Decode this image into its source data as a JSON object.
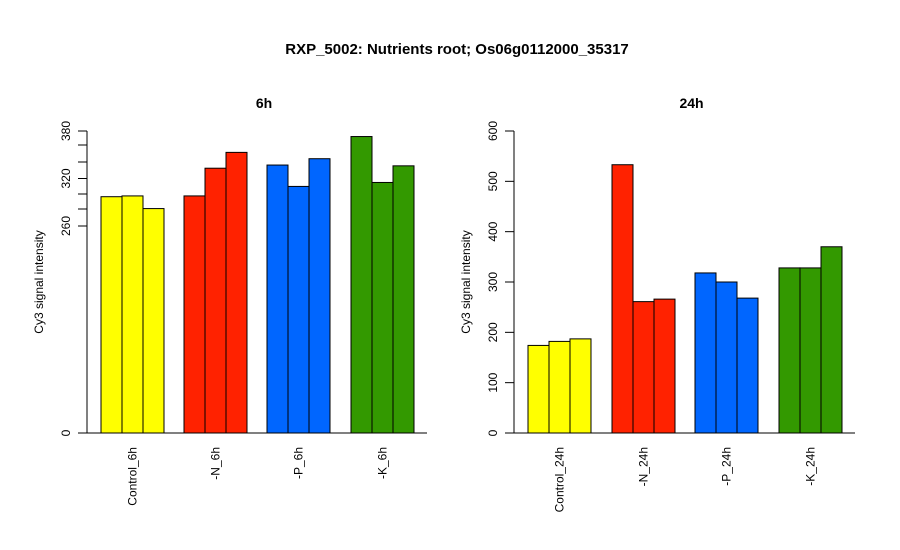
{
  "title": "RXP_5002: Nutrients root; Os06g0112000_35317",
  "colors": {
    "control": "#ffff00",
    "N": "#ff2200",
    "P": "#0066ff",
    "K": "#339900"
  },
  "chart_data": [
    {
      "type": "bar",
      "title": "6h",
      "ylabel": "Cy3 signal intensity",
      "ylim": [
        0,
        380
      ],
      "y_ticks": [
        0,
        260,
        320,
        380
      ],
      "y_scale": "piecewise: ticks 0 and 260 are spaced with a compressed lower range",
      "groups": [
        {
          "label": "Control_6h",
          "color": "#ffff00",
          "values": [
            297,
            298,
            282
          ]
        },
        {
          "label": "-N_6h",
          "color": "#ff2200",
          "values": [
            298,
            333,
            353
          ]
        },
        {
          "label": "-P_6h",
          "color": "#0066ff",
          "values": [
            337,
            310,
            345
          ]
        },
        {
          "label": "-K_6h",
          "color": "#339900",
          "values": [
            373,
            315,
            336
          ]
        }
      ]
    },
    {
      "type": "bar",
      "title": "24h",
      "ylabel": "Cy3 signal intensity",
      "ylim": [
        0,
        600
      ],
      "y_ticks": [
        0,
        100,
        200,
        300,
        400,
        500,
        600
      ],
      "groups": [
        {
          "label": "Control_24h",
          "color": "#ffff00",
          "values": [
            174,
            182,
            187
          ]
        },
        {
          "label": "-N_24h",
          "color": "#ff2200",
          "values": [
            533,
            261,
            266
          ]
        },
        {
          "label": "-P_24h",
          "color": "#0066ff",
          "values": [
            318,
            300,
            268
          ]
        },
        {
          "label": "-K_24h",
          "color": "#339900",
          "values": [
            328,
            328,
            370
          ]
        }
      ]
    }
  ]
}
